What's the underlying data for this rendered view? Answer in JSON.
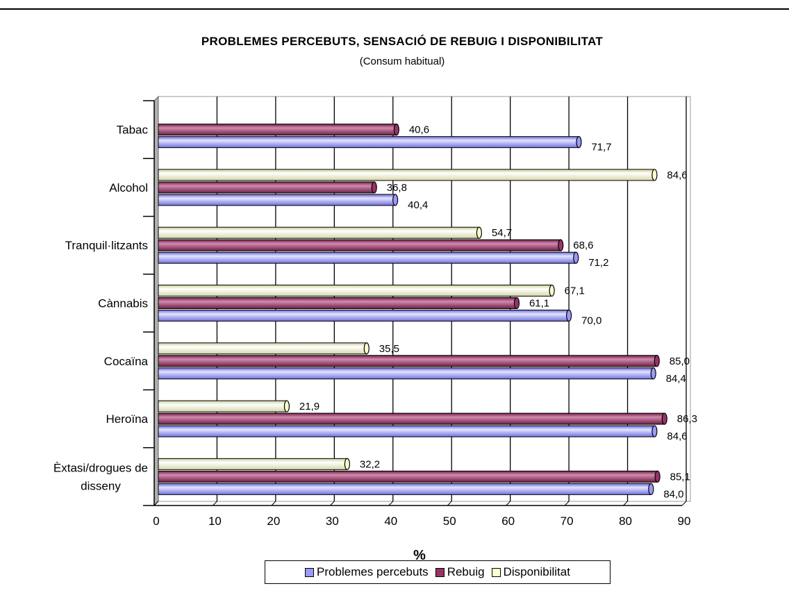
{
  "title": "PROBLEMES PERCEBUTS, SENSACIÓ DE REBUIG I DISPONIBILITAT",
  "subtitle": "(Consum habitual)",
  "chart_data": {
    "type": "bar",
    "orientation": "horizontal",
    "title": "PROBLEMES PERCEBUTS, SENSACIÓ DE REBUIG I DISPONIBILITAT",
    "subtitle": "(Consum habitual)",
    "xlabel": "%",
    "ylabel": "",
    "xlim": [
      0,
      90
    ],
    "xticks": [
      "0",
      "10",
      "20",
      "30",
      "40",
      "50",
      "60",
      "70",
      "80",
      "90"
    ],
    "grid": "vertical",
    "legend_position": "bottom",
    "categories": [
      "Tabac",
      "Alcohol",
      "Tranquil·litzants",
      "Cànnabis",
      "Cocaïna",
      "Heroïna",
      "Èxtasi/drogues de disseny"
    ],
    "series": [
      {
        "name": "Problemes percebuts",
        "color": "#9999ff",
        "values": [
          71.7,
          40.4,
          71.2,
          70.0,
          84.4,
          84.6,
          84.0
        ],
        "labels": [
          "71,7",
          "40,4",
          "71,2",
          "70,0",
          "84,4",
          "84,6",
          "84,0"
        ]
      },
      {
        "name": "Rebuig",
        "color": "#993366",
        "values": [
          40.6,
          36.8,
          68.6,
          61.1,
          85.0,
          86.3,
          85.1
        ],
        "labels": [
          "40,6",
          "36,8",
          "68,6",
          "61,1",
          "85,0",
          "86,3",
          "85,1"
        ]
      },
      {
        "name": "Disponibilitat",
        "color": "#ffffcc",
        "values": [
          null,
          84.6,
          54.7,
          67.1,
          35.5,
          21.9,
          32.2
        ],
        "labels": [
          "",
          "84,6",
          "54,7",
          "67,1",
          "35,5",
          "21,9",
          "32,2"
        ]
      }
    ]
  }
}
